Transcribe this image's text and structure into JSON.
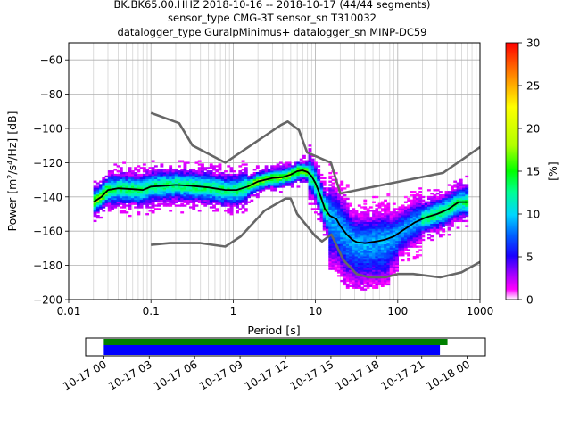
{
  "header": {
    "title_line1": "BK.BK65.00.HHZ   2018-10-16 -- 2018-10-17  (44/44 segments)",
    "title_line2": "sensor_type CMG-3T sensor_sn T310032",
    "title_line3": "datalogger_type GuralpMinimus+ datalogger_sn MINP-DC59"
  },
  "chart_data": {
    "type": "heatmap",
    "xscale": "log",
    "xlabel": "Period [s]",
    "ylabel": "Power [m²/s⁴/Hz] [dB]",
    "xlim": [
      0.01,
      1000
    ],
    "ylim": [
      -200,
      -50
    ],
    "xticks": [
      {
        "value": 0.01,
        "label": "0.01"
      },
      {
        "value": 0.1,
        "label": "0.1"
      },
      {
        "value": 1,
        "label": "1"
      },
      {
        "value": 10,
        "label": "10"
      },
      {
        "value": 100,
        "label": "100"
      },
      {
        "value": 1000,
        "label": "1000"
      }
    ],
    "yticks": [
      {
        "value": -200,
        "label": "−200"
      },
      {
        "value": -180,
        "label": "−180"
      },
      {
        "value": -160,
        "label": "−160"
      },
      {
        "value": -140,
        "label": "−140"
      },
      {
        "value": -120,
        "label": "−120"
      },
      {
        "value": -100,
        "label": "−100"
      },
      {
        "value": -80,
        "label": "−80"
      },
      {
        "value": -60,
        "label": "−60"
      }
    ],
    "grid": true,
    "colorbar": {
      "label": "[%]",
      "range": [
        0,
        30
      ],
      "ticks": [
        {
          "value": 0,
          "label": "0"
        },
        {
          "value": 5,
          "label": "5"
        },
        {
          "value": 10,
          "label": "10"
        },
        {
          "value": 15,
          "label": "15"
        },
        {
          "value": 20,
          "label": "20"
        },
        {
          "value": 25,
          "label": "25"
        },
        {
          "value": 30,
          "label": "30"
        }
      ]
    },
    "model_curves": [
      {
        "points": [
          [
            0.1,
            -91
          ],
          [
            0.22,
            -97
          ],
          [
            0.32,
            -110
          ],
          [
            0.8,
            -120
          ],
          [
            3.8,
            -98
          ],
          [
            4.6,
            -96
          ],
          [
            6.3,
            -101
          ],
          [
            7.9,
            -114
          ],
          [
            15.4,
            -120
          ],
          [
            20,
            -138
          ],
          [
            354.8,
            -126
          ],
          [
            1000,
            -111
          ]
        ]
      },
      {
        "points": [
          [
            0.1,
            -168
          ],
          [
            0.17,
            -167
          ],
          [
            0.4,
            -167
          ],
          [
            0.8,
            -169
          ],
          [
            1.24,
            -163
          ],
          [
            2.4,
            -148
          ],
          [
            4.3,
            -141
          ],
          [
            5,
            -141
          ],
          [
            6,
            -150
          ],
          [
            10,
            -163
          ],
          [
            12,
            -166
          ],
          [
            15.6,
            -162
          ],
          [
            21.9,
            -177
          ],
          [
            31.6,
            -185
          ],
          [
            45,
            -187
          ],
          [
            70,
            -187
          ],
          [
            101,
            -185
          ],
          [
            154,
            -185
          ],
          [
            328,
            -187
          ],
          [
            600,
            -184
          ],
          [
            1000,
            -178
          ]
        ]
      }
    ],
    "mean_curve": {
      "points": [
        [
          0.02,
          -143
        ],
        [
          0.025,
          -140
        ],
        [
          0.03,
          -136
        ],
        [
          0.04,
          -135
        ],
        [
          0.06,
          -135.5
        ],
        [
          0.08,
          -136
        ],
        [
          0.1,
          -134
        ],
        [
          0.15,
          -133.5
        ],
        [
          0.2,
          -133
        ],
        [
          0.3,
          -133.5
        ],
        [
          0.5,
          -134.5
        ],
        [
          0.8,
          -136
        ],
        [
          1.1,
          -136
        ],
        [
          1.5,
          -134
        ],
        [
          2,
          -131
        ],
        [
          3,
          -129
        ],
        [
          4,
          -128.5
        ],
        [
          5,
          -127
        ],
        [
          6,
          -125
        ],
        [
          7,
          -124.5
        ],
        [
          8,
          -125.5
        ],
        [
          9,
          -128
        ],
        [
          10,
          -132
        ],
        [
          11,
          -137
        ],
        [
          12,
          -142
        ],
        [
          13,
          -147
        ],
        [
          15,
          -151
        ],
        [
          18,
          -153
        ],
        [
          20,
          -157
        ],
        [
          24,
          -162
        ],
        [
          28,
          -165
        ],
        [
          32,
          -166.5
        ],
        [
          40,
          -167
        ],
        [
          55,
          -166
        ],
        [
          70,
          -165
        ],
        [
          90,
          -163
        ],
        [
          120,
          -159
        ],
        [
          160,
          -155
        ],
        [
          220,
          -152
        ],
        [
          300,
          -150
        ],
        [
          400,
          -147.5
        ],
        [
          550,
          -143
        ],
        [
          700,
          -143
        ]
      ]
    },
    "time_coverage": {
      "tick_labels": [
        "10-17 00",
        "10-17 03",
        "10-17 06",
        "10-17 09",
        "10-17 12",
        "10-17 15",
        "10-17 18",
        "10-17 21",
        "10-18 00"
      ],
      "range_hours": [
        -1.2,
        25.2
      ],
      "data_hours": [
        0,
        22.2
      ],
      "processed_hours": [
        0,
        22.7
      ]
    },
    "colors": {
      "model": "#666666",
      "mean": "#000000",
      "data_bar": "#0000ff",
      "processed_bar": "#008000"
    }
  }
}
